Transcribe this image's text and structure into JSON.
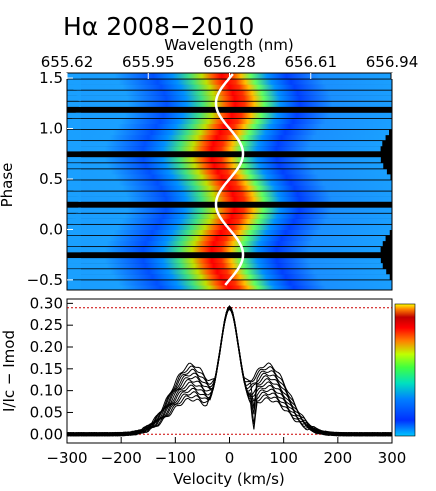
{
  "chart_data": [
    {
      "type": "heatmap",
      "title": "Hα 2008−2010",
      "xlabel_top": "Wavelength (nm)",
      "top_ticks": [
        "655.62",
        "655.95",
        "656.28",
        "656.61",
        "656.94"
      ],
      "top_tick_values": [
        655.62,
        655.95,
        656.28,
        656.61,
        656.94
      ],
      "ylabel": "Phase",
      "ylim": [
        -0.6,
        1.55
      ],
      "yticks": [
        "−0.5",
        "0.0",
        "0.5",
        "1.0",
        "1.5"
      ],
      "ytick_values": [
        -0.5,
        0.0,
        0.5,
        1.0,
        1.5
      ],
      "xlim_velocity": [
        -300,
        300
      ],
      "colormap": "rainbow",
      "data_gaps_color": "#000000",
      "overlay_curve": {
        "color": "#ffffff",
        "description_values": {
          "phase": [
            -0.55,
            -0.5,
            -0.25,
            0.0,
            0.25,
            0.5,
            0.75,
            1.0,
            1.25,
            1.5
          ],
          "velocity": [
            0,
            15,
            25,
            0,
            -25,
            0,
            25,
            0,
            -25,
            0
          ]
        }
      },
      "observation_phases": [
        -0.58,
        -0.53,
        -0.47,
        -0.42,
        -0.36,
        -0.31,
        -0.2,
        -0.14,
        -0.09,
        -0.03,
        0.02,
        0.08,
        0.13,
        0.19,
        0.3,
        0.35,
        0.41,
        0.46,
        0.52,
        0.57,
        0.63,
        0.69,
        0.8,
        0.85,
        0.91,
        0.96,
        1.02,
        1.07,
        1.13,
        1.24,
        1.3,
        1.35,
        1.41,
        1.46,
        1.52
      ]
    },
    {
      "type": "line",
      "xlabel": "Velocity (km/s)",
      "ylabel": "I/Ic − Imod",
      "xlim": [
        -300,
        300
      ],
      "ylim": [
        -0.02,
        0.31
      ],
      "xticks": [
        "−300",
        "−200",
        "−100",
        "0",
        "100",
        "200",
        "300"
      ],
      "xtick_values": [
        -300,
        -200,
        -100,
        0,
        100,
        200,
        300
      ],
      "yticks": [
        "0.00",
        "0.05",
        "0.10",
        "0.15",
        "0.20",
        "0.25",
        "0.30"
      ],
      "ytick_values": [
        0.0,
        0.05,
        0.1,
        0.15,
        0.2,
        0.25,
        0.3
      ],
      "reference_lines": [
        0.0,
        0.29
      ],
      "reference_line_color": "#cc0000",
      "series_color": "#000000",
      "profile_shape": {
        "peak_velocity": 0,
        "peak_value": 0.29,
        "shoulder_velocity_blue": -70,
        "shoulder_velocity_red": 70,
        "shoulder_value_range": [
          0.08,
          0.16
        ],
        "absorption_dip_velocity": 45
      },
      "series_count": 12
    }
  ],
  "colorbar": {
    "colors": [
      "#00b4ff",
      "#0000ff",
      "#00ffff",
      "#00ff00",
      "#ffff00",
      "#ff0000",
      "#7f0000",
      "#ffff00"
    ]
  }
}
